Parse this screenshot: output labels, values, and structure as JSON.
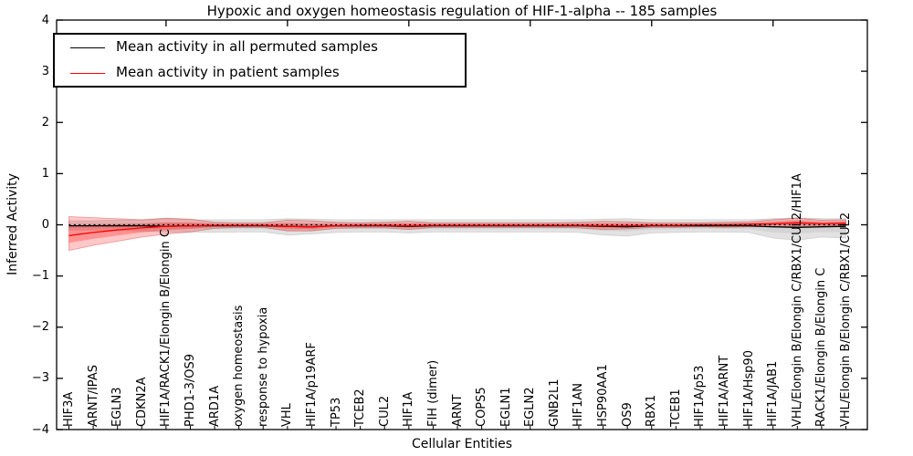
{
  "figure": {
    "title": "Hypoxic and oxygen homeostasis regulation of HIF-1-alpha -- 185 samples",
    "xlabel": "Cellular Entities",
    "ylabel": "Inferred Activity"
  },
  "legend": {
    "items": [
      {
        "label": "Mean activity in all permuted samples",
        "color": "#000000"
      },
      {
        "label": "Mean activity in patient samples",
        "color": "#ff0000"
      }
    ]
  },
  "chart_data": {
    "type": "line",
    "title": "Hypoxic and oxygen homeostasis regulation of HIF-1-alpha -- 185 samples",
    "xlabel": "Cellular Entities",
    "ylabel": "Inferred Activity",
    "ylim": [
      -4,
      4
    ],
    "yticks": [
      4,
      3,
      2,
      1,
      0,
      -1,
      -2,
      -3,
      -4
    ],
    "grid": false,
    "legend_position": "upper left",
    "zero_line": {
      "y": 0,
      "style": "dashed",
      "color": "#000000"
    },
    "categories": [
      "HIF3A",
      "ARNT/IPAS",
      "EGLN3",
      "CDKN2A",
      "HIF1A/RACK1/Elongin B/Elongin C",
      "PHD1-3/OS9",
      "ARD1A",
      "oxygen homeostasis",
      "response to hypoxia",
      "VHL",
      "HIF1A/p19ARF",
      "TP53",
      "TCEB2",
      "CUL2",
      "HIF1A",
      "FIH (dimer)",
      "ARNT",
      "COPS5",
      "EGLN1",
      "EGLN2",
      "GNB2L1",
      "HIF1AN",
      "HSP90AA1",
      "OS9",
      "RBX1",
      "TCEB1",
      "HIF1A/p53",
      "HIF1A/ARNT",
      "HIF1A/Hsp90",
      "HIF1A/JAB1",
      "VHL/Elongin B/Elongin C/RBX1/CUL2/HIF1A",
      "RACK1/Elongin B/Elongin C",
      "VHL/Elongin B/Elongin C/RBX1/CUL2"
    ],
    "series": [
      {
        "name": "Mean activity in all permuted samples",
        "color": "#000000",
        "band_color": "#bbbbbb",
        "values": [
          -0.02,
          -0.02,
          -0.02,
          -0.02,
          -0.03,
          -0.02,
          -0.02,
          -0.02,
          -0.02,
          -0.03,
          -0.04,
          -0.02,
          -0.02,
          -0.02,
          -0.03,
          -0.02,
          -0.02,
          -0.02,
          -0.02,
          -0.02,
          -0.02,
          -0.02,
          -0.03,
          -0.04,
          -0.02,
          -0.02,
          -0.02,
          -0.02,
          -0.02,
          -0.04,
          -0.05,
          -0.04,
          -0.03
        ],
        "band_upper": [
          0.08,
          0.08,
          0.09,
          0.09,
          0.12,
          0.1,
          0.1,
          0.1,
          0.1,
          0.12,
          0.11,
          0.1,
          0.1,
          0.1,
          0.1,
          0.1,
          0.1,
          0.1,
          0.1,
          0.1,
          0.1,
          0.1,
          0.11,
          0.12,
          0.1,
          0.1,
          0.1,
          0.1,
          0.1,
          0.12,
          0.14,
          0.12,
          0.12
        ],
        "band_lower": [
          -0.1,
          -0.1,
          -0.11,
          -0.12,
          -0.14,
          -0.14,
          -0.15,
          -0.14,
          -0.14,
          -0.2,
          -0.18,
          -0.15,
          -0.14,
          -0.14,
          -0.16,
          -0.14,
          -0.14,
          -0.14,
          -0.14,
          -0.14,
          -0.14,
          -0.15,
          -0.2,
          -0.22,
          -0.16,
          -0.15,
          -0.14,
          -0.14,
          -0.15,
          -0.26,
          -0.3,
          -0.24,
          -0.26
        ]
      },
      {
        "name": "Mean activity in patient samples",
        "color": "#ff0000",
        "band_color": "#ff0000",
        "values": [
          -0.21,
          -0.15,
          -0.1,
          -0.06,
          -0.03,
          -0.02,
          -0.01,
          -0.01,
          -0.01,
          -0.03,
          -0.04,
          -0.02,
          -0.01,
          -0.01,
          -0.02,
          -0.01,
          -0.01,
          -0.01,
          -0.01,
          -0.01,
          -0.01,
          -0.01,
          -0.02,
          -0.02,
          -0.01,
          -0.01,
          0.0,
          0.0,
          0.01,
          0.02,
          0.04,
          0.02,
          0.03
        ],
        "band_upper": [
          0.16,
          0.14,
          0.12,
          0.1,
          0.13,
          0.11,
          0.05,
          0.04,
          0.04,
          0.09,
          0.08,
          0.05,
          0.04,
          0.05,
          0.07,
          0.04,
          0.04,
          0.04,
          0.04,
          0.04,
          0.04,
          0.05,
          0.07,
          0.06,
          0.04,
          0.04,
          0.04,
          0.05,
          0.06,
          0.1,
          0.13,
          0.09,
          0.1
        ],
        "band_lower": [
          -0.5,
          -0.4,
          -0.32,
          -0.24,
          -0.18,
          -0.14,
          -0.07,
          -0.05,
          -0.05,
          -0.12,
          -0.12,
          -0.07,
          -0.06,
          -0.06,
          -0.09,
          -0.05,
          -0.05,
          -0.05,
          -0.05,
          -0.05,
          -0.05,
          -0.06,
          -0.09,
          -0.08,
          -0.05,
          -0.05,
          -0.04,
          -0.05,
          -0.04,
          -0.04,
          -0.03,
          -0.02,
          -0.02
        ]
      }
    ],
    "top_tick_entity_numbers": [
      5,
      10,
      15,
      20,
      25,
      30
    ]
  }
}
